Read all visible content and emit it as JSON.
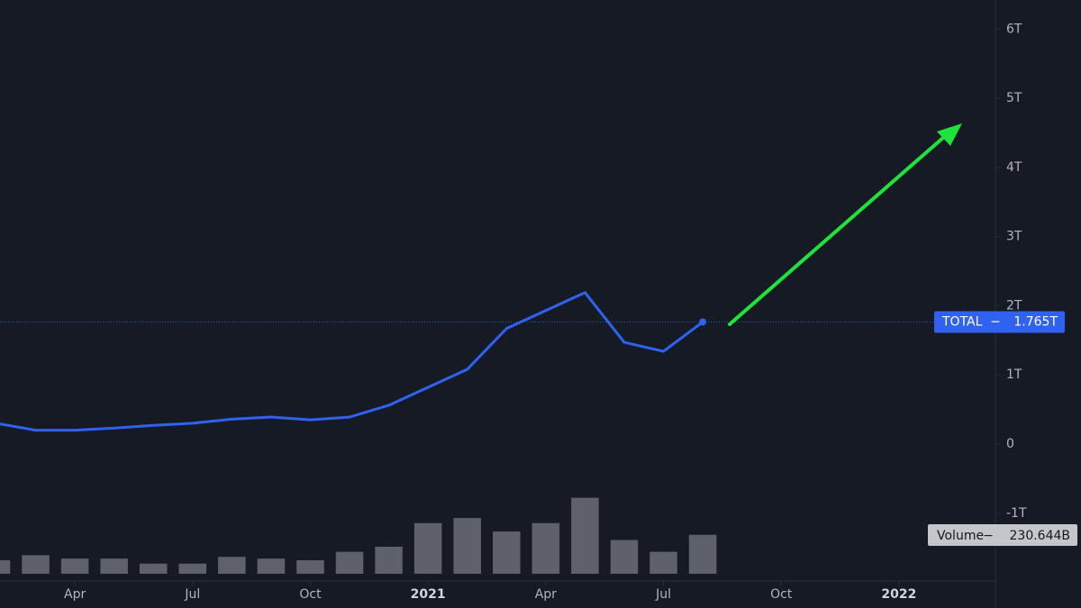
{
  "chart_data": {
    "type": "line",
    "x": [
      "2020-02",
      "2020-03",
      "2020-04",
      "2020-05",
      "2020-06",
      "2020-07",
      "2020-08",
      "2020-09",
      "2020-10",
      "2020-11",
      "2020-12",
      "2021-01",
      "2021-02",
      "2021-03",
      "2021-04",
      "2021-05",
      "2021-06",
      "2021-07",
      "2021-08"
    ],
    "series": [
      {
        "name": "TOTAL",
        "color": "#2f62f0",
        "values": [
          0.3,
          0.2,
          0.2,
          0.23,
          0.27,
          0.3,
          0.36,
          0.39,
          0.35,
          0.39,
          0.56,
          0.82,
          1.08,
          1.67,
          1.93,
          2.19,
          1.47,
          1.34,
          1.765
        ],
        "last_label": "1.765T"
      },
      {
        "name": "Volume",
        "color": "#7d808a",
        "axis": "y2",
        "values": [
          80,
          110,
          90,
          90,
          60,
          60,
          100,
          90,
          80,
          130,
          160,
          300,
          330,
          250,
          300,
          450,
          200,
          130,
          230.644
        ],
        "last_label": "230.644B"
      }
    ],
    "xlim": [
      "2020-02",
      "2022-03"
    ],
    "xticks": [
      {
        "value": "2020-04",
        "label": "Apr"
      },
      {
        "value": "2020-07",
        "label": "Jul"
      },
      {
        "value": "2020-10",
        "label": "Oct"
      },
      {
        "value": "2021-01",
        "label": "2021"
      },
      {
        "value": "2021-04",
        "label": "Apr"
      },
      {
        "value": "2021-07",
        "label": "Jul"
      },
      {
        "value": "2021-10",
        "label": "Oct"
      },
      {
        "value": "2022-01",
        "label": "2022"
      }
    ],
    "ylim": [
      -1.98,
      6.42
    ],
    "yticks": [
      {
        "value": -1,
        "label": "-1T"
      },
      0,
      {
        "value": 1,
        "label": "1T"
      },
      {
        "value": 2,
        "label": "2T"
      },
      {
        "value": 3,
        "label": "3T"
      },
      {
        "value": 4,
        "label": "4T"
      },
      {
        "value": 5,
        "label": "5T"
      },
      {
        "value": 6,
        "label": "6T"
      }
    ],
    "y2lim": [
      0,
      880
    ]
  }
}
